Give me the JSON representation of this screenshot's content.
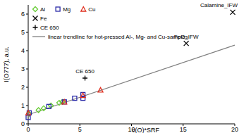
{
  "chart_data": {
    "type": "scatter",
    "x_label": "c(O)*SRF",
    "y_label": "I(O777), a.u.",
    "xlim": [
      0,
      20
    ],
    "ylim": [
      0,
      6.5
    ],
    "xticks": [
      0,
      5,
      10,
      15,
      20
    ],
    "yticks": [
      0,
      1,
      2,
      3,
      4,
      5,
      6
    ],
    "grid": false,
    "legend": "upper left",
    "series": [
      {
        "name": "Al",
        "color": "#66cc33",
        "marker": "diamond",
        "x": [
          0.1,
          1.0,
          1.5,
          2.2,
          3.0,
          3.3
        ],
        "values": [
          0.55,
          0.75,
          0.85,
          1.0,
          1.15,
          1.2
        ]
      },
      {
        "name": "Mg",
        "color": "#2b2ba8",
        "marker": "square",
        "x": [
          0.0,
          0.1,
          2.0,
          3.5,
          4.5,
          5.3,
          5.3
        ],
        "values": [
          0.35,
          0.6,
          0.95,
          1.2,
          1.4,
          1.6,
          1.4
        ]
      },
      {
        "name": "Cu",
        "color": "#e03020",
        "marker": "triangle",
        "x": [
          0.0,
          3.5,
          5.3,
          7.0
        ],
        "values": [
          0.6,
          1.2,
          1.55,
          1.85
        ]
      },
      {
        "name": "Fe",
        "color": "#000000",
        "marker": "x",
        "x": [
          15.3,
          19.8
        ],
        "values": [
          4.4,
          6.1
        ]
      },
      {
        "name": "CE 650",
        "color": "#000000",
        "marker": "plus",
        "x": [
          5.5
        ],
        "values": [
          2.5
        ]
      },
      {
        "name": "linear trendline for hot-pressed Al-, Mg- and Cu-samples",
        "type": "line",
        "color": "#808080",
        "x": [
          0,
          20
        ],
        "values": [
          0.5,
          4.3
        ]
      }
    ],
    "annotations": [
      {
        "text": "Calamine_IFW",
        "x": 19.8,
        "y": 6.1
      },
      {
        "text": "FeO_IFW",
        "x": 15.3,
        "y": 4.4
      },
      {
        "text": "CE 650",
        "x": 5.5,
        "y": 2.5
      }
    ]
  }
}
